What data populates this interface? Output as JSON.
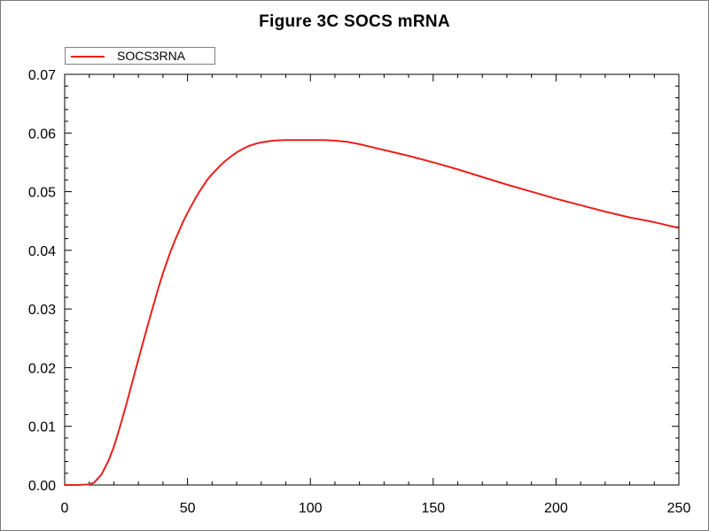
{
  "chart_data": {
    "type": "line",
    "title": "Figure 3C SOCS mRNA",
    "xlabel": "",
    "ylabel": "",
    "xlim": [
      0,
      250
    ],
    "ylim": [
      0,
      0.07
    ],
    "x_ticks": [
      "0",
      "50",
      "100",
      "150",
      "200",
      "250"
    ],
    "y_ticks": [
      "0.00",
      "0.01",
      "0.02",
      "0.03",
      "0.04",
      "0.05",
      "0.06",
      "0.07"
    ],
    "grid": false,
    "legend_position": "top-left",
    "series": [
      {
        "name": "SOCS3RNA",
        "color": "#e8201c",
        "x": [
          0,
          5,
          10,
          12,
          15,
          18,
          20,
          22,
          25,
          28,
          30,
          33,
          35,
          38,
          40,
          43,
          45,
          48,
          50,
          53,
          55,
          58,
          60,
          63,
          65,
          68,
          70,
          73,
          75,
          78,
          80,
          85,
          90,
          95,
          100,
          105,
          110,
          115,
          120,
          125,
          130,
          140,
          150,
          160,
          170,
          180,
          190,
          200,
          210,
          220,
          230,
          240,
          250
        ],
        "y": [
          0.0,
          0.0,
          0.0001,
          0.0004,
          0.0018,
          0.0043,
          0.0065,
          0.0092,
          0.0136,
          0.0183,
          0.0214,
          0.026,
          0.029,
          0.0334,
          0.0361,
          0.0397,
          0.0418,
          0.0447,
          0.0464,
          0.0487,
          0.0501,
          0.052,
          0.053,
          0.0543,
          0.0551,
          0.0561,
          0.0567,
          0.0574,
          0.0578,
          0.0582,
          0.0584,
          0.0587,
          0.0588,
          0.0588,
          0.0588,
          0.0588,
          0.0587,
          0.0585,
          0.0581,
          0.0576,
          0.0571,
          0.0561,
          0.055,
          0.0538,
          0.0525,
          0.0512,
          0.05,
          0.0488,
          0.0477,
          0.0466,
          0.0456,
          0.0448,
          0.0438
        ]
      }
    ]
  }
}
